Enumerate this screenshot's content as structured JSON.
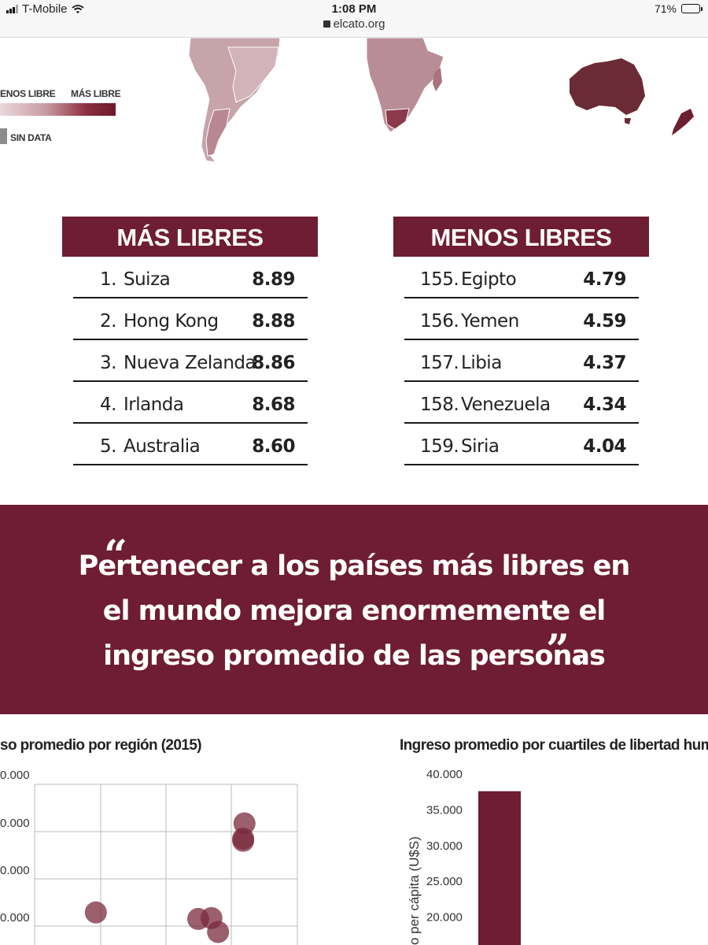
{
  "status_bar": {
    "carrier": "T-Mobile",
    "time": "1:08 PM",
    "url": "elcato.org",
    "battery": "71%",
    "battery_level": 0.71
  },
  "map": {
    "legend_min": "ENOS LIBRE",
    "legend_max": "MÁS LIBRE",
    "legend_nodata": "SIN DATA",
    "colors": {
      "light": "#ead8dc",
      "dark": "#6e1a2b",
      "nodata": "#8c8c8c"
    }
  },
  "most_free": {
    "title": "MÁS LIBRES",
    "rows": [
      {
        "rank": "1.",
        "country": "Suiza",
        "score": "8.89"
      },
      {
        "rank": "2.",
        "country": "Hong Kong",
        "score": "8.88"
      },
      {
        "rank": "3.",
        "country": "Nueva Zelanda",
        "score": "8.86"
      },
      {
        "rank": "4.",
        "country": "Irlanda",
        "score": "8.68"
      },
      {
        "rank": "5.",
        "country": "Australia",
        "score": "8.60"
      }
    ]
  },
  "least_free": {
    "title": "MENOS LIBRES",
    "rows": [
      {
        "rank": "155.",
        "country": "Egipto",
        "score": "4.79"
      },
      {
        "rank": "156.",
        "country": "Yemen",
        "score": "4.59"
      },
      {
        "rank": "157.",
        "country": "Libia",
        "score": "4.37"
      },
      {
        "rank": "158.",
        "country": "Venezuela",
        "score": "4.34"
      },
      {
        "rank": "159.",
        "country": "Siria",
        "score": "4.04"
      }
    ]
  },
  "quote": {
    "open_mark": "“",
    "close_mark": "”.",
    "line1": "Pertenecer a los países más libres en",
    "line2": "el mundo mejora enormemente el",
    "line3": "ingreso promedio de las personas",
    "brand_color": "#6e1d34"
  },
  "chart_data": [
    {
      "type": "scatter",
      "title": "so promedio por región (2015)",
      "ytick_labels": [
        "0.000",
        "0.000",
        "0.000",
        "0.000"
      ],
      "points": [
        {
          "x": 1.45,
          "y": 0.55
        },
        {
          "x": 3.7,
          "y": 2.6
        },
        {
          "x": 3.68,
          "y": 2.2
        },
        {
          "x": 3.68,
          "y": 2.25
        },
        {
          "x": 3.0,
          "y": 0.4
        },
        {
          "x": 3.2,
          "y": 0.42
        },
        {
          "x": 3.3,
          "y": 0.1
        }
      ],
      "xlim": [
        0,
        4.5
      ],
      "ylim": [
        -0.2,
        3.5
      ],
      "grid": true,
      "point_color": "#7a2a3e"
    },
    {
      "type": "bar",
      "title": "Ingreso promedio por cuartiles de libertad humana",
      "ylabel": "o per cápita (U$S)",
      "yticks": [
        "40.000",
        "35.000",
        "30.000",
        "25.000",
        "20.000"
      ],
      "ytick_values": [
        40000,
        35000,
        30000,
        25000,
        20000
      ],
      "values": [
        37500
      ],
      "ylim": [
        17000,
        40000
      ],
      "bar_color": "#6e1d34"
    }
  ]
}
